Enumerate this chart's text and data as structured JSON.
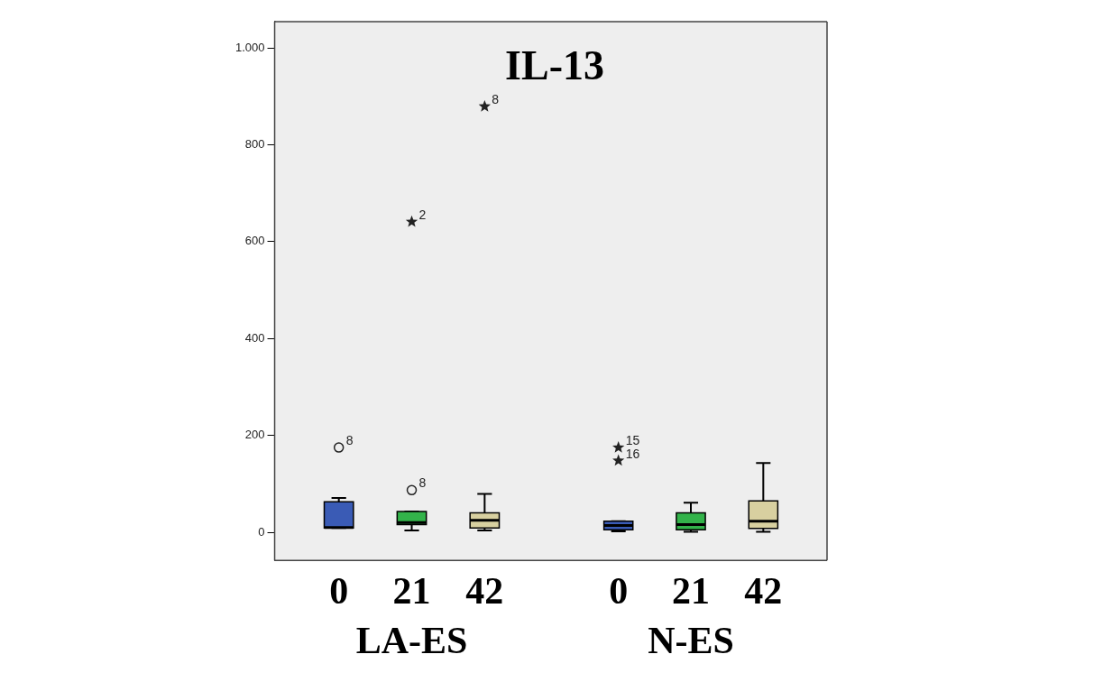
{
  "chart_data": [
    {
      "type": "box",
      "title": "IL-13",
      "xlabel": "LA-ES",
      "categories": [
        "0",
        "21",
        "42"
      ],
      "colors": [
        "#3a5bb5",
        "#33b34a",
        "#d8d0a0"
      ],
      "boxes": [
        {
          "low": 9,
          "q1": 9,
          "median": 10,
          "q3": 63,
          "high": 71
        },
        {
          "low": 4,
          "q1": 16,
          "median": 20,
          "q3": 43,
          "high": 43
        },
        {
          "low": 4,
          "q1": 9,
          "median": 25,
          "q3": 40,
          "high": 79
        }
      ],
      "series": [
        {
          "type": "scatter",
          "marker": "circle",
          "color": "#222222",
          "x": [
            "0",
            "21"
          ],
          "values": [
            175,
            87
          ]
        },
        {
          "type": "scatter",
          "marker": "star",
          "color": "#222222",
          "x": [
            "21",
            "42"
          ],
          "values": [
            641,
            879
          ]
        }
      ],
      "annotations": [
        {
          "text": "8",
          "x": "0",
          "y": 175
        },
        {
          "text": "8",
          "x": "21",
          "y": 87
        },
        {
          "text": "2",
          "x": "21",
          "y": 641
        },
        {
          "text": "8",
          "x": "42",
          "y": 879
        }
      ],
      "ylim": [
        -58,
        1054
      ],
      "yticks": [
        0,
        200,
        400,
        600,
        800,
        {
          "value": 1000,
          "label": "1.000"
        }
      ]
    },
    {
      "type": "box",
      "xlabel": "N-ES",
      "categories": [
        "0",
        "21",
        "42"
      ],
      "colors": [
        "#3a5bb5",
        "#33b34a",
        "#d8d0a0"
      ],
      "boxes": [
        {
          "low": 2,
          "q1": 5,
          "median": 14,
          "q3": 23,
          "high": 23
        },
        {
          "low": 1,
          "q1": 5,
          "median": 16,
          "q3": 40,
          "high": 61
        },
        {
          "low": 1,
          "q1": 8,
          "median": 23,
          "q3": 65,
          "high": 143
        }
      ],
      "series": [
        {
          "type": "scatter",
          "marker": "star",
          "color": "#222222",
          "x": [
            "0",
            "0"
          ],
          "values": [
            175,
            148
          ]
        }
      ],
      "annotations": [
        {
          "text": "15",
          "x": "0",
          "y": 175
        },
        {
          "text": "16",
          "x": "0",
          "y": 148
        }
      ],
      "ylim": [
        -58,
        1054
      ],
      "yticks": [
        0,
        200,
        400,
        600,
        800,
        1000
      ],
      "tick_labels": "x"
    }
  ]
}
